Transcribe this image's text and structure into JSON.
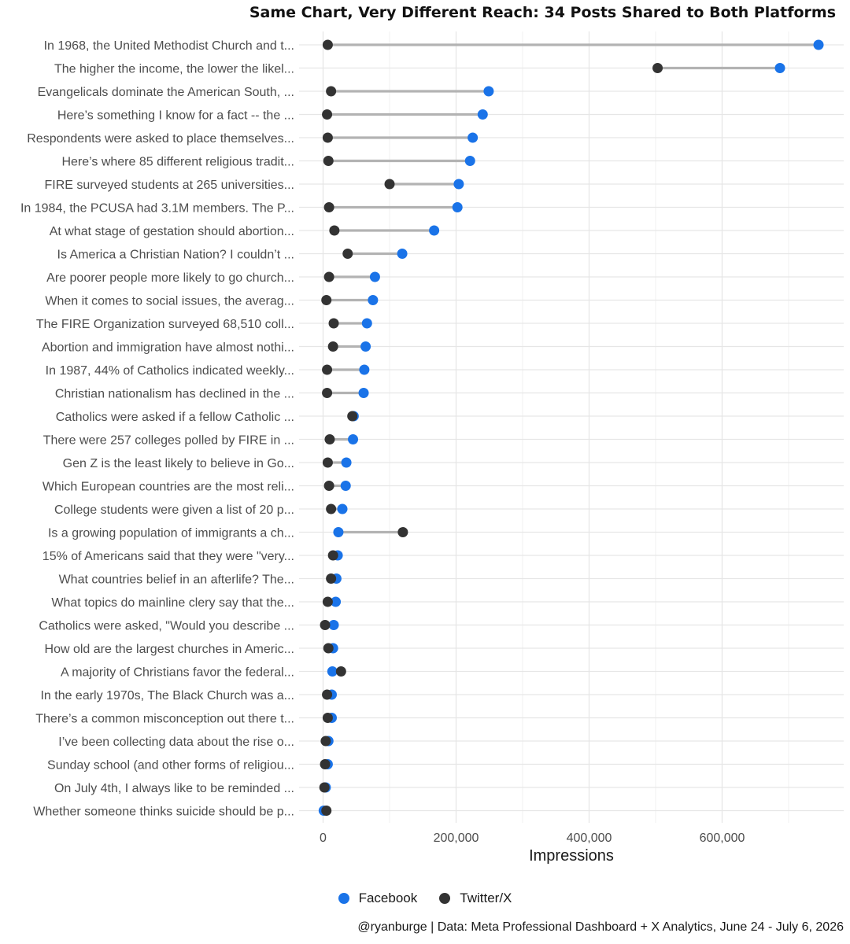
{
  "chart_data": {
    "type": "dumbbell",
    "title": "Same Chart, Very Different Reach: 34 Posts Shared to Both Platforms",
    "xlabel": "Impressions",
    "ylabel": "",
    "xlim": [
      0,
      750000
    ],
    "x_ticks": [
      {
        "value": 0,
        "label": "0"
      },
      {
        "value": 200000,
        "label": "200,000"
      },
      {
        "value": 400000,
        "label": "400,000"
      },
      {
        "value": 600000,
        "label": "600,000"
      }
    ],
    "grid": true,
    "legend_position": "bottom",
    "series": [
      {
        "name": "Facebook",
        "color": "#1a73e8"
      },
      {
        "name": "Twitter/X",
        "color": "#333333"
      }
    ],
    "posts": [
      {
        "label": "In 1968, the United Methodist Church and t...",
        "facebook": 745000,
        "twitter": 7000
      },
      {
        "label": "The higher the income, the lower the likel...",
        "facebook": 687000,
        "twitter": 503000
      },
      {
        "label": "Evangelicals dominate the American South, ...",
        "facebook": 249000,
        "twitter": 12000
      },
      {
        "label": "Here’s something I know for a fact -- the ...",
        "facebook": 240000,
        "twitter": 6000
      },
      {
        "label": "Respondents were asked to place themselves...",
        "facebook": 225000,
        "twitter": 7000
      },
      {
        "label": "Here’s where 85 different religious tradit...",
        "facebook": 221000,
        "twitter": 8000
      },
      {
        "label": "FIRE surveyed students at 265 universities...",
        "facebook": 204000,
        "twitter": 100000
      },
      {
        "label": "In 1984, the PCUSA had 3.1M members. The P...",
        "facebook": 202000,
        "twitter": 9000
      },
      {
        "label": "At what stage of gestation should abortion...",
        "facebook": 167000,
        "twitter": 17000
      },
      {
        "label": "Is America a Christian Nation? I couldn’t ...",
        "facebook": 119000,
        "twitter": 37000
      },
      {
        "label": "Are poorer people more likely to go church...",
        "facebook": 78000,
        "twitter": 9000
      },
      {
        "label": "When it comes to social issues, the averag...",
        "facebook": 75000,
        "twitter": 5000
      },
      {
        "label": "The FIRE Organization surveyed 68,510 coll...",
        "facebook": 66000,
        "twitter": 16000
      },
      {
        "label": "Abortion and immigration have almost nothi...",
        "facebook": 64000,
        "twitter": 15000
      },
      {
        "label": "In 1987, 44% of Catholics indicated weekly...",
        "facebook": 62000,
        "twitter": 6000
      },
      {
        "label": "Christian nationalism has declined in the ...",
        "facebook": 61000,
        "twitter": 6000
      },
      {
        "label": "Catholics were asked if a fellow Catholic ...",
        "facebook": 46000,
        "twitter": 44000
      },
      {
        "label": "There were 257 colleges polled by FIRE in ...",
        "facebook": 45000,
        "twitter": 10000
      },
      {
        "label": "Gen Z is the least likely to believe in Go...",
        "facebook": 35000,
        "twitter": 7000
      },
      {
        "label": "Which European countries are the most reli...",
        "facebook": 34000,
        "twitter": 9000
      },
      {
        "label": "College students were given a list of 20 p...",
        "facebook": 29000,
        "twitter": 12000
      },
      {
        "label": "Is a growing population of immigrants a ch...",
        "facebook": 23000,
        "twitter": 120000
      },
      {
        "label": "15% of Americans said that they were \"very...",
        "facebook": 22000,
        "twitter": 15000
      },
      {
        "label": "What countries belief in an afterlife? The...",
        "facebook": 20000,
        "twitter": 12000
      },
      {
        "label": "What topics do mainline clery say that the...",
        "facebook": 19000,
        "twitter": 7000
      },
      {
        "label": "Catholics were asked, \"Would you describe ...",
        "facebook": 16000,
        "twitter": 3000
      },
      {
        "label": "How old are the largest churches in Americ...",
        "facebook": 15000,
        "twitter": 8000
      },
      {
        "label": "A majority of Christians favor the federal...",
        "facebook": 14000,
        "twitter": 27000
      },
      {
        "label": "In the early 1970s, The Black Church was a...",
        "facebook": 13000,
        "twitter": 6000
      },
      {
        "label": "There’s a common misconception out there t...",
        "facebook": 13000,
        "twitter": 7000
      },
      {
        "label": "I’ve been collecting data about the rise o...",
        "facebook": 8000,
        "twitter": 4000
      },
      {
        "label": "Sunday school (and other forms of religiou...",
        "facebook": 7000,
        "twitter": 3000
      },
      {
        "label": "On July 4th, I always like to be reminded ...",
        "facebook": 4000,
        "twitter": 2000
      },
      {
        "label": "Whether someone thinks suicide should be p...",
        "facebook": 1000,
        "twitter": 5000
      }
    ]
  },
  "caption": "@ryanburge | Data: Meta Professional Dashboard + X Analytics, June 24 - July 6, 2026"
}
